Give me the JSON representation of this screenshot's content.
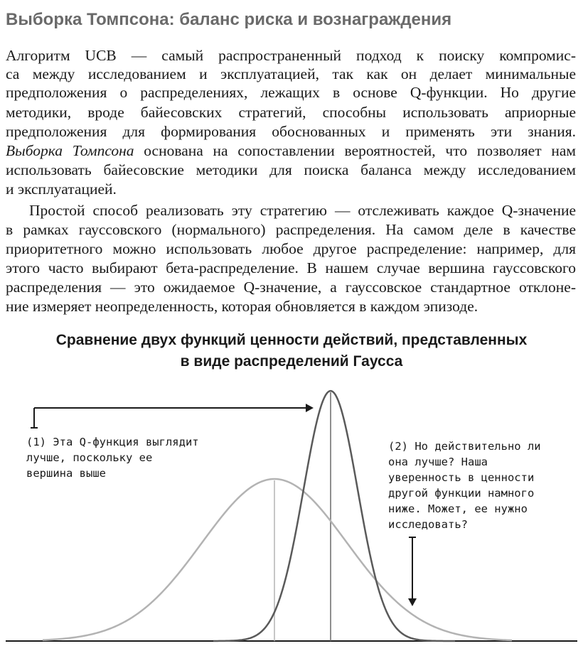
{
  "heading": "Выборка Томпсона: баланс риска и вознаграждения",
  "paragraph1": {
    "line1": "Алгоритм UCB — самый распространенный подход к поиску компромис-",
    "line2": "са между исследованием и эксплуатацией, так как он делает минимальные",
    "line3": "предположения о распределениях, лежащих в основе Q-функции. Но другие",
    "line4": "методики, вроде байесовских стратегий, способны использовать априорные",
    "line5": "предположения для формирования обоснованных и применять эти знания.",
    "line6_em": "Выборка Томпсона",
    "line6_rest": " основана на сопоставлении вероятностей, что позволяет нам",
    "line7": "использовать байесовские методики для поиска баланса между исследованием",
    "line8": "и эксплуатацией."
  },
  "paragraph2": {
    "line1": "Простой способ реализовать эту стратегию — отслеживать каждое Q-значение",
    "line2": "в рамках гауссовского (нормального) распределения. На самом деле в качестве",
    "line3": "приоритетного можно использовать любое другое распределение: например, для",
    "line4": "этого часто выбирают бета-распределение. В нашем случае вершина гауссовского",
    "line5": "распределения — это ожидаемое Q-значение, а гауссовское стандартное отклоне-",
    "line6": "ние измеряет неопределенность, которая обновляется в каждом эпизоде."
  },
  "figure": {
    "title_line1": "Сравнение двух функций ценности действий, представленных",
    "title_line2": "в виде распределений Гаусса",
    "callout1": [
      "(1) Эта Q-функция выглядит",
      "лучше, поскольку ее",
      "вершина выше"
    ],
    "callout2": [
      "(2) Но действительно ли",
      "она лучше? Наша",
      "уверенность в ценности",
      "другой функции намного",
      "ниже. Может, ее нужно",
      "исследовать?"
    ],
    "colors": {
      "wide_curve": "#b3b3b3",
      "narrow_curve": "#5a5a5a",
      "arrows": "#1a1a1a",
      "text": "#1a1a1a",
      "heading": "#6a6a6a"
    }
  }
}
